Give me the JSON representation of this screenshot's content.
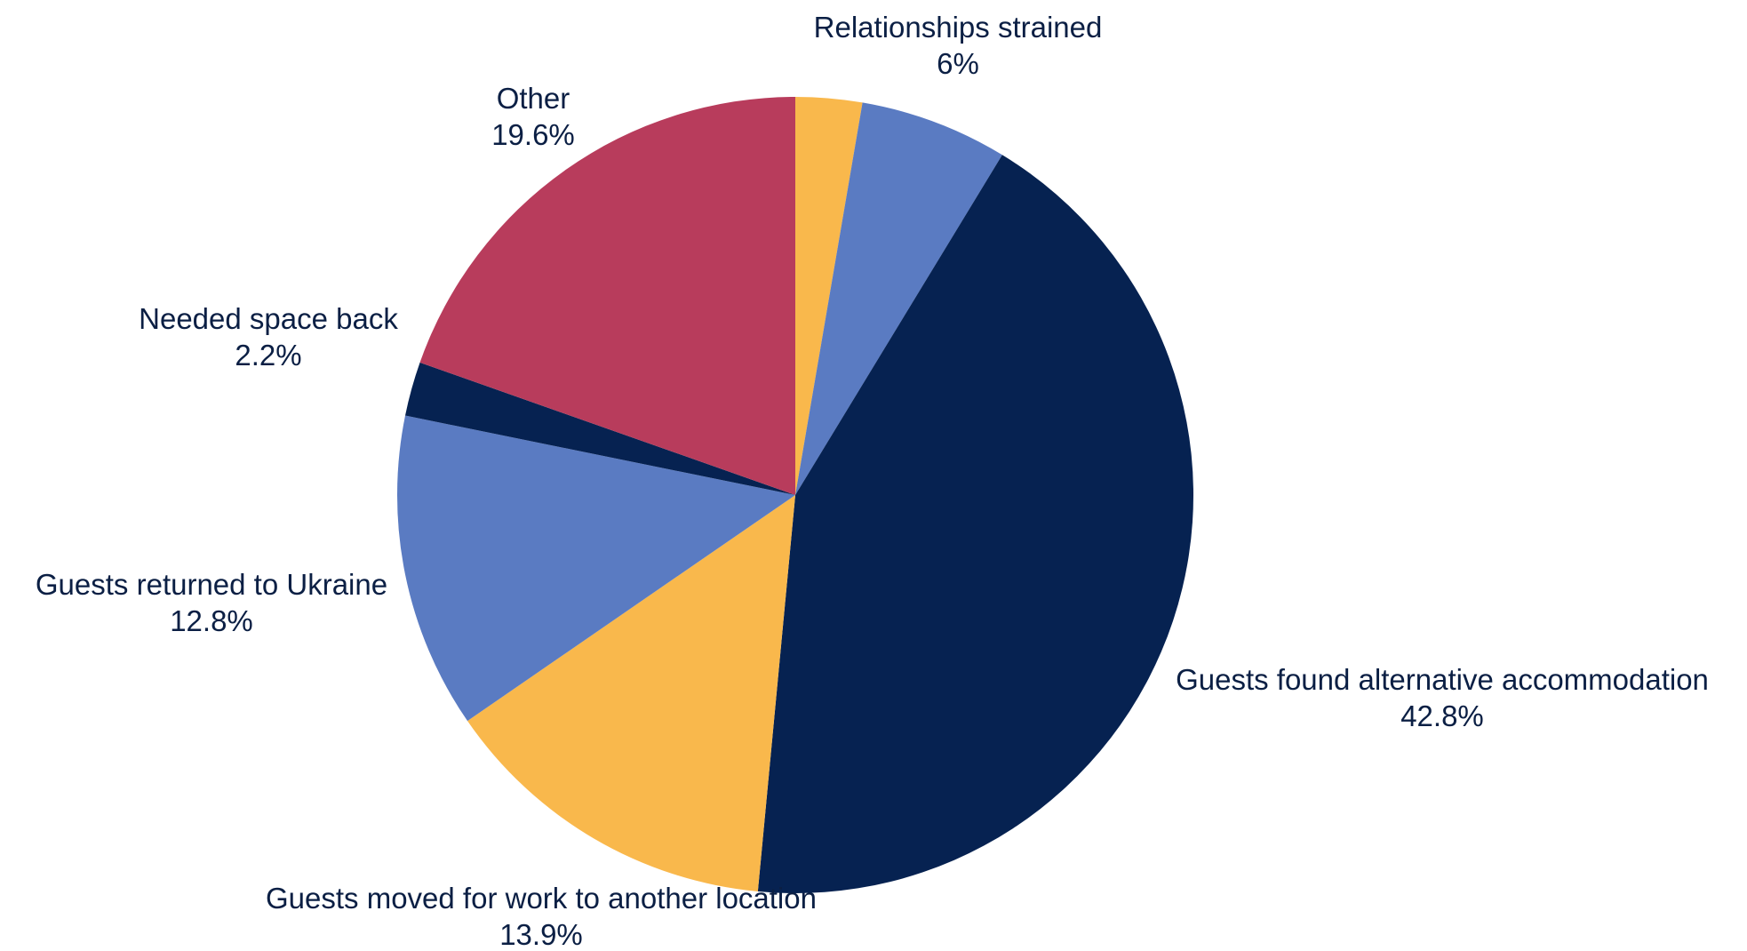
{
  "chart_data": {
    "type": "pie",
    "title": "",
    "start_angle_deg": 0,
    "direction": "clockwise",
    "slices": [
      {
        "label": "",
        "value": 2.7,
        "value_label": "",
        "color": "#f9b84c"
      },
      {
        "label": "Relationships strained",
        "value": 6.0,
        "value_label": "6%",
        "color": "#5a7bc2"
      },
      {
        "label": "Guests found alternative accommodation",
        "value": 42.8,
        "value_label": "42.8%",
        "color": "#062251"
      },
      {
        "label": "Guests moved for work to another location",
        "value": 13.9,
        "value_label": "13.9%",
        "color": "#f9b84c"
      },
      {
        "label": "Guests returned to Ukraine",
        "value": 12.8,
        "value_label": "12.8%",
        "color": "#5a7bc2"
      },
      {
        "label": "Needed space back",
        "value": 2.2,
        "value_label": "2.2%",
        "color": "#062251"
      },
      {
        "label": "Other",
        "value": 19.6,
        "value_label": "19.6%",
        "color": "#b83c5c"
      }
    ]
  }
}
